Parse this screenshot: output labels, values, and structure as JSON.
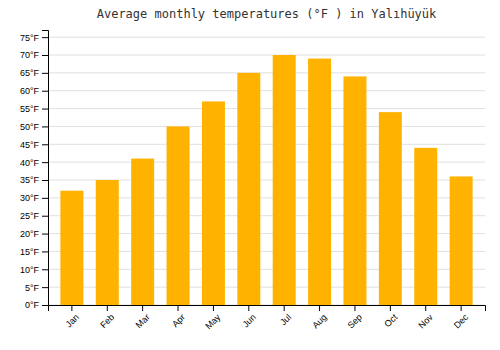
{
  "chart_data": {
    "type": "bar",
    "title": "Average monthly temperatures (°F ) in Yalıhüyük",
    "categories": [
      "Jan",
      "Feb",
      "Mar",
      "Apr",
      "May",
      "Jun",
      "Jul",
      "Aug",
      "Sep",
      "Oct",
      "Nov",
      "Dec"
    ],
    "values": [
      32,
      35,
      41,
      50,
      57,
      65,
      70,
      69,
      64,
      54,
      44,
      36
    ],
    "color": "#FFB300",
    "ylim": [
      0,
      77
    ],
    "yticks": [
      {
        "value": 0,
        "label": "0°F"
      },
      {
        "value": 5,
        "label": "5°F"
      },
      {
        "value": 10,
        "label": "10°F"
      },
      {
        "value": 15,
        "label": "15°F"
      },
      {
        "value": 20,
        "label": "20°F"
      },
      {
        "value": 25,
        "label": "25°F"
      },
      {
        "value": 30,
        "label": "30°F"
      },
      {
        "value": 35,
        "label": "35°F"
      },
      {
        "value": 40,
        "label": "40°F"
      },
      {
        "value": 45,
        "label": "45°F"
      },
      {
        "value": 50,
        "label": "50°F"
      },
      {
        "value": 55,
        "label": "55°F"
      },
      {
        "value": 60,
        "label": "60°F"
      },
      {
        "value": 65,
        "label": "65°F"
      },
      {
        "value": 70,
        "label": "70°F"
      },
      {
        "value": 75,
        "label": "75°F"
      }
    ],
    "grid": true
  }
}
